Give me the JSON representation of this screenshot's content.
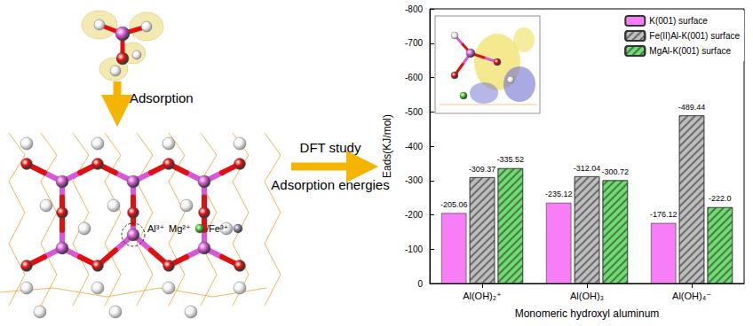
{
  "diagram": {
    "steps": [
      "Adsorption",
      "DFT study",
      "Adsorption energies"
    ],
    "ion_labels": [
      "Al³⁺",
      "Mg²⁺",
      "/Fe³⁺"
    ]
  },
  "chart_data": {
    "type": "bar",
    "xlabel": "Monomeric hydroxyl aluminum",
    "ylabel": "Eads(KJ/mol)",
    "categories": [
      "Al(OH)₂⁺",
      "Al(OH)₃",
      "Al(OH)₄⁻"
    ],
    "series": [
      {
        "name": "K(001) surface",
        "color": "#f77ef7",
        "values": [
          -205.06,
          -235.12,
          -176.12
        ]
      },
      {
        "name": "Fe(II)Al-K(001) surface",
        "color": "#bdbdbd",
        "values": [
          -309.37,
          -312.04,
          -489.44
        ]
      },
      {
        "name": "MgAl-K(001) surface",
        "color": "#6fdc6f",
        "values": [
          -335.52,
          -300.72,
          -222.0
        ],
        "value_labels": [
          "-335.52",
          "-300.72",
          "-222.0"
        ]
      }
    ],
    "ylim": [
      0,
      -800
    ],
    "yticks": [
      0,
      -100,
      -200,
      -300,
      -400,
      -500,
      -600,
      -700,
      -800
    ],
    "grid": false,
    "legend": "upper right",
    "data_labels": true
  }
}
